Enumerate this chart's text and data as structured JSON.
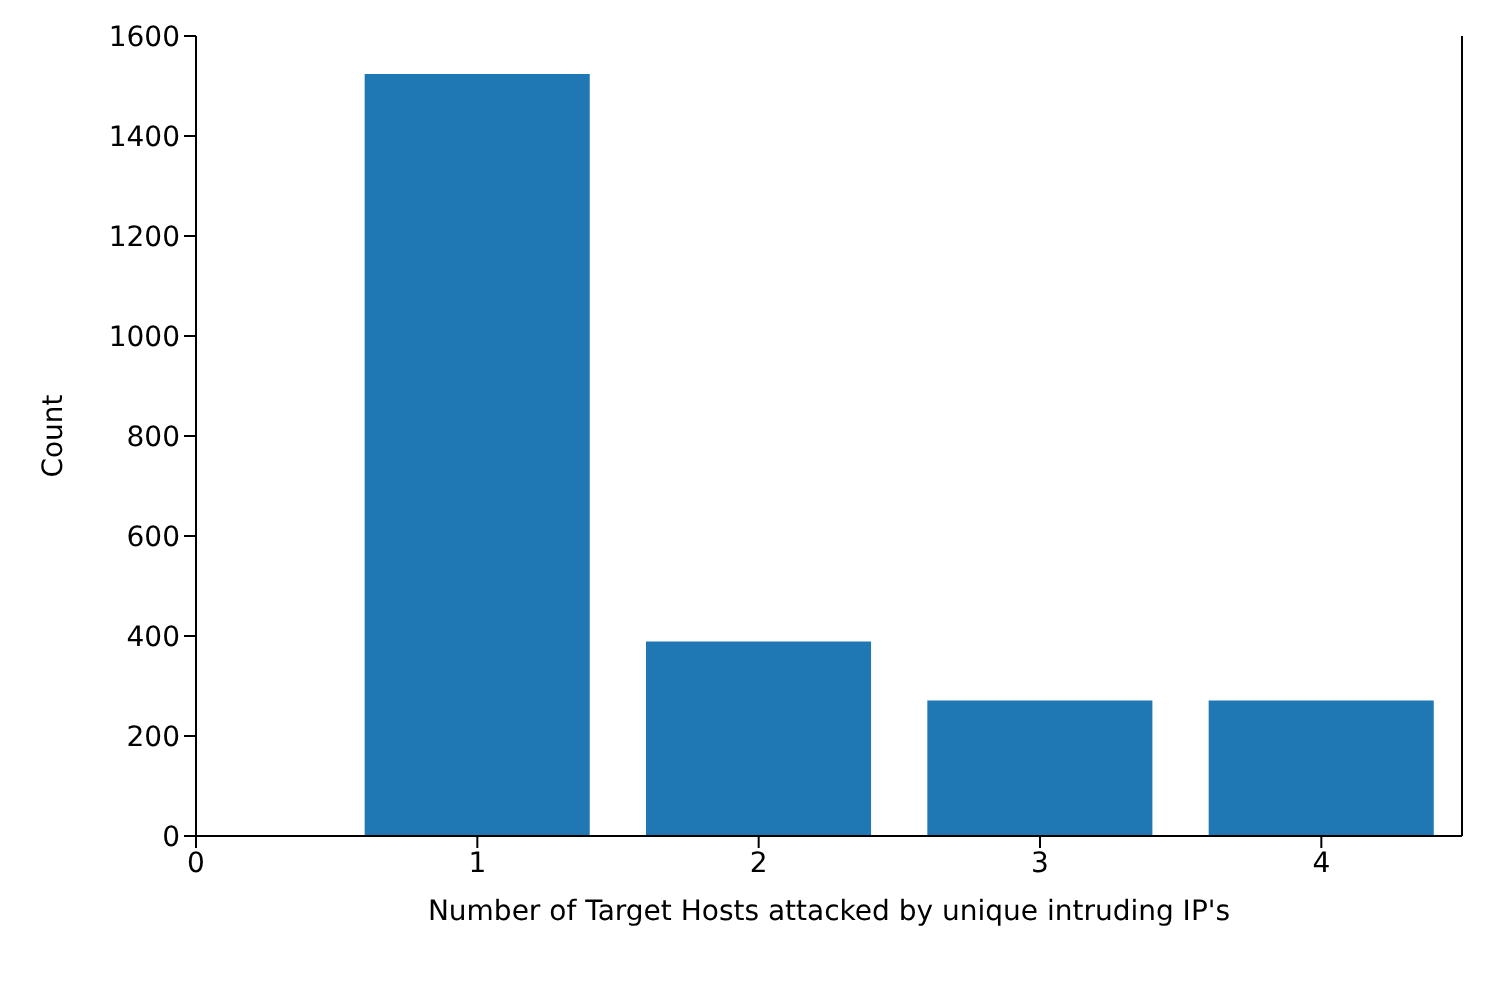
{
  "chart_data": {
    "type": "bar",
    "xlabel": "Number of Target Hosts attacked by unique intruding IP's",
    "ylabel": "Count",
    "x": [
      1,
      2,
      3,
      4
    ],
    "values": [
      1524,
      389,
      271,
      271
    ],
    "color": "#1f77b4",
    "xlim": [
      0,
      4.5
    ],
    "xticks": [
      0,
      1,
      2,
      3,
      4
    ],
    "ylim": [
      0,
      1600
    ],
    "yticks": [
      0,
      200,
      400,
      600,
      800,
      1000,
      1200,
      1400,
      1600
    ],
    "grid": false,
    "legend": false
  }
}
